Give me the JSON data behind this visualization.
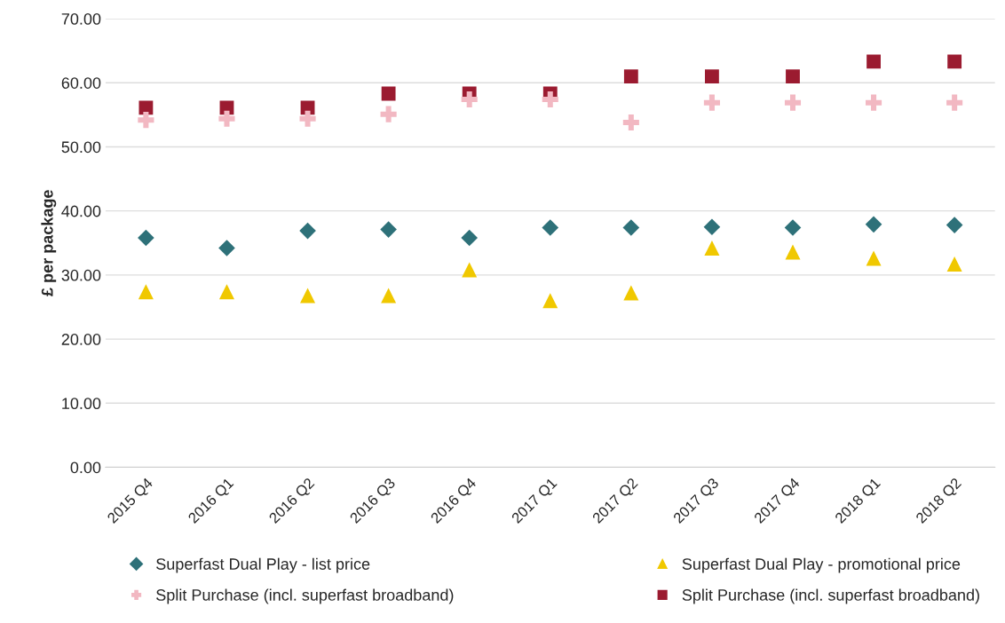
{
  "chart_data": {
    "type": "scatter",
    "ylabel": "£ per package",
    "categories": [
      "2015 Q4",
      "2016 Q1",
      "2016 Q2",
      "2016 Q3",
      "2016 Q4",
      "2017 Q1",
      "2017 Q2",
      "2017 Q3",
      "2017 Q4",
      "2018 Q1",
      "2018 Q2"
    ],
    "series": [
      {
        "name": "Superfast Dual Play - list price",
        "color": "#2e7179",
        "marker": "diamond",
        "values": [
          35.8,
          34.2,
          36.9,
          37.1,
          35.8,
          37.4,
          37.4,
          37.5,
          37.4,
          37.9,
          37.8
        ]
      },
      {
        "name": "Superfast Dual Play - promotional price",
        "color": "#f0c800",
        "marker": "triangle",
        "values": [
          27.4,
          27.4,
          26.8,
          26.8,
          30.8,
          26.0,
          27.2,
          34.2,
          33.6,
          32.6,
          31.7
        ]
      },
      {
        "name": "Split Purchase (incl. superfast broadband)",
        "color": "#f2b8c2",
        "marker": "cross",
        "values": [
          54.2,
          54.4,
          54.4,
          55.1,
          57.4,
          57.4,
          53.8,
          56.9,
          56.9,
          56.9,
          56.9
        ]
      },
      {
        "name": "Split Purchase (incl. superfast broadband)",
        "color": "#9b1b30",
        "marker": "square",
        "values": [
          56.1,
          56.1,
          56.1,
          58.3,
          58.3,
          58.3,
          61.0,
          61.0,
          61.0,
          63.3,
          63.3
        ]
      }
    ],
    "ylim": [
      0,
      70
    ],
    "yticks": [
      {
        "value": 0,
        "label": "0.00"
      },
      {
        "value": 10,
        "label": "10.00"
      },
      {
        "value": 20,
        "label": "20.00"
      },
      {
        "value": 30,
        "label": "30.00"
      },
      {
        "value": 40,
        "label": "40.00"
      },
      {
        "value": 50,
        "label": "50.00"
      },
      {
        "value": 60,
        "label": "60.00"
      },
      {
        "value": 70,
        "label": "70.00"
      }
    ],
    "grid": "y",
    "legend": "bottom"
  }
}
